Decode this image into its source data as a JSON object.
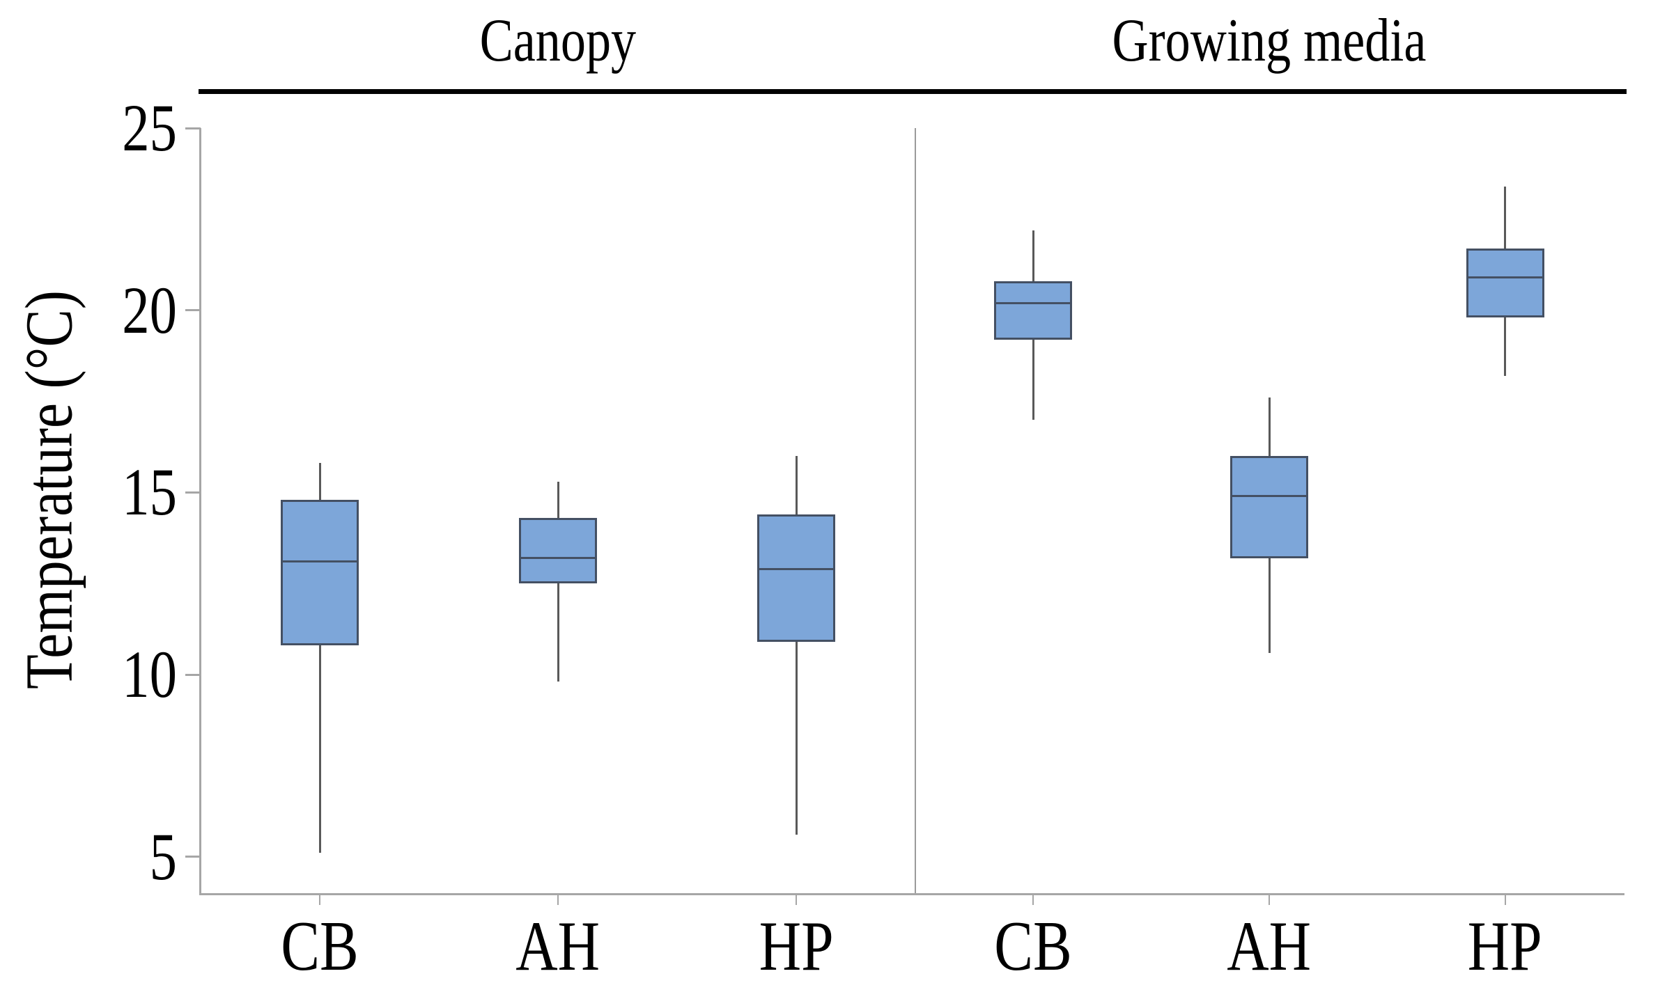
{
  "chart_data": {
    "type": "boxplot",
    "ylabel": "Temperature (°C)",
    "y_ticks": [
      25,
      20,
      15,
      10,
      5
    ],
    "ylim": [
      4,
      25
    ],
    "grid": false,
    "legend": null,
    "panels": [
      {
        "label": "Canopy",
        "categories": [
          "CB",
          "AH",
          "HP"
        ],
        "boxes": [
          {
            "category": "CB",
            "whisker_low": 5.1,
            "q1": 10.8,
            "median": 13.1,
            "q3": 14.8,
            "whisker_high": 15.8
          },
          {
            "category": "AH",
            "whisker_low": 9.8,
            "q1": 12.5,
            "median": 13.2,
            "q3": 14.3,
            "whisker_high": 15.3
          },
          {
            "category": "HP",
            "whisker_low": 5.6,
            "q1": 10.9,
            "median": 12.9,
            "q3": 14.4,
            "whisker_high": 16.0
          }
        ]
      },
      {
        "label": "Growing media",
        "categories": [
          "CB",
          "AH",
          "HP"
        ],
        "boxes": [
          {
            "category": "CB",
            "whisker_low": 17.0,
            "q1": 19.2,
            "median": 20.2,
            "q3": 20.8,
            "whisker_high": 22.2
          },
          {
            "category": "AH",
            "whisker_low": 10.6,
            "q1": 13.2,
            "median": 14.9,
            "q3": 16.0,
            "whisker_high": 17.6
          },
          {
            "category": "HP",
            "whisker_low": 18.2,
            "q1": 19.8,
            "median": 20.9,
            "q3": 21.7,
            "whisker_high": 23.4
          }
        ]
      }
    ],
    "colors": {
      "box_fill": "#7da6d9",
      "box_border": "#445063",
      "median": "#445063",
      "whisker": "#595959",
      "axis": "#a6a6a6",
      "panel_divider": "#9a9a9a",
      "header_line": "#000000",
      "text": "#000000"
    }
  }
}
